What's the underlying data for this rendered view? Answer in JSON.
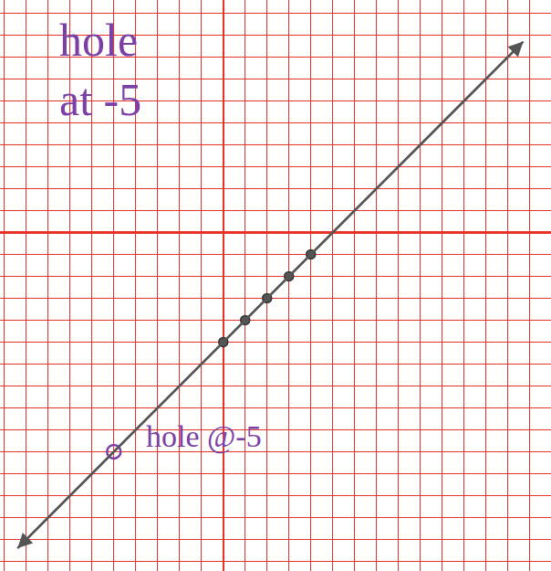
{
  "chart_data": {
    "type": "line",
    "xlim": [
      -10.2,
      14.97
    ],
    "ylim": [
      -15.44,
      10.6
    ],
    "xticks": [
      -10,
      -9,
      -8,
      -7,
      -6,
      -5,
      -4,
      -3,
      -2,
      -1,
      0,
      1,
      2,
      3,
      4,
      5,
      6,
      7,
      8,
      9,
      10,
      11,
      12,
      13,
      14
    ],
    "yticks": [
      -15,
      -14,
      -13,
      -12,
      -11,
      -10,
      -9,
      -8,
      -7,
      -6,
      -5,
      -4,
      -3,
      -2,
      -1,
      0,
      1,
      2,
      3,
      4,
      5,
      6,
      7,
      8,
      9,
      10
    ],
    "grid": true,
    "color": "#e8332a",
    "tick_labels": false,
    "series": [
      {
        "type": "line",
        "color": "#555555",
        "x": [
          -9.4,
          13.7
        ],
        "values": [
          -14.4,
          8.7
        ],
        "marker": "arrow"
      },
      {
        "type": "scatter",
        "color": "#555555",
        "x": [
          0,
          1,
          2,
          3,
          4
        ],
        "values": [
          -5,
          -4,
          -3,
          -2,
          -1
        ],
        "marker": "filled"
      },
      {
        "type": "scatter",
        "color": "#7b3fa5",
        "x": [
          -5
        ],
        "values": [
          -10
        ],
        "marker": "open"
      }
    ],
    "annotations": [
      {
        "text": "hole\nat -5",
        "x": -5.6,
        "y": 7.4,
        "color": "#7b3fa5"
      },
      {
        "text": "hole @-5",
        "x": -0.9,
        "y": -9.3,
        "color": "#7b3fa5"
      }
    ]
  }
}
